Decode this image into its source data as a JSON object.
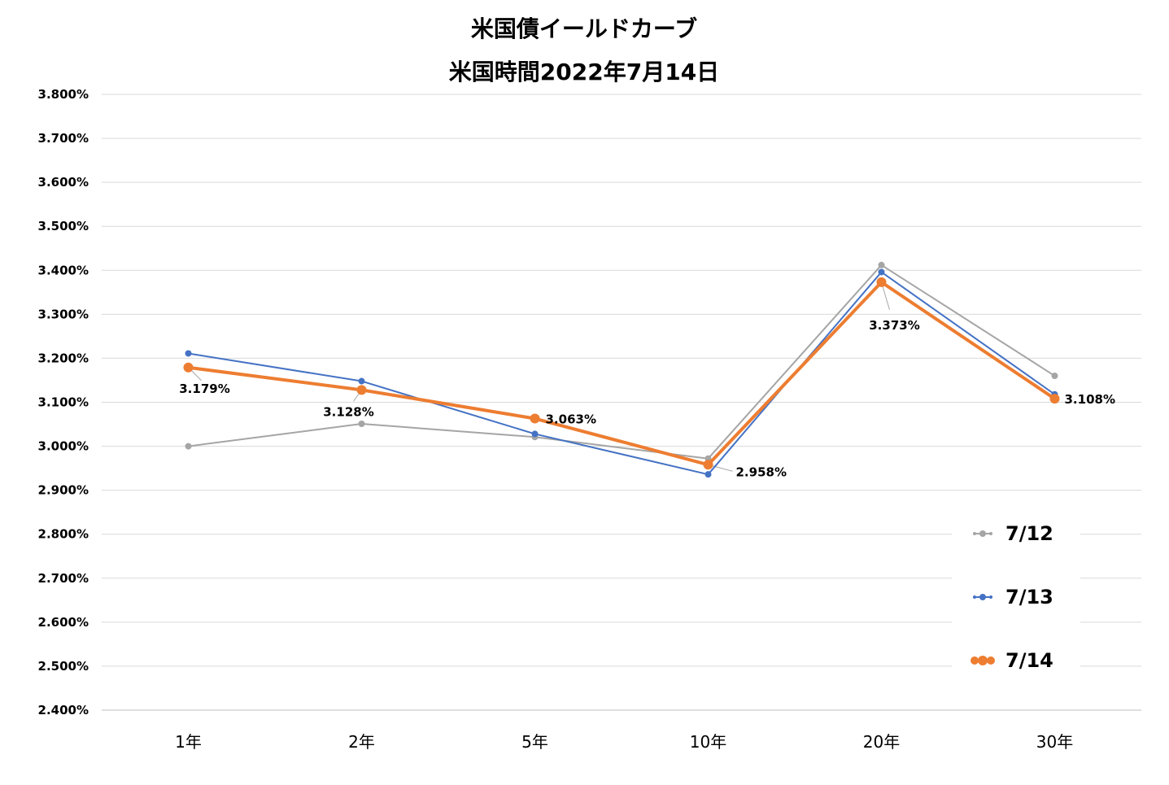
{
  "chart_data": {
    "type": "line",
    "title": "米国債イールドカーブ",
    "subtitle": "米国時間2022年7月14日",
    "categories": [
      "1年",
      "2年",
      "5年",
      "10年",
      "20年",
      "30年"
    ],
    "ylim": [
      2.4,
      3.8
    ],
    "ytick_step": 0.1,
    "ytick_labels": [
      "3.800%",
      "3.700%",
      "3.600%",
      "3.500%",
      "3.400%",
      "3.300%",
      "3.200%",
      "3.100%",
      "3.000%",
      "2.900%",
      "2.800%",
      "2.700%",
      "2.600%",
      "2.500%",
      "2.400%"
    ],
    "grid": true,
    "legend_position": "bottom-right",
    "series": [
      {
        "name": "7/12",
        "color": "#a5a5a5",
        "values": [
          3.0,
          3.051,
          3.021,
          2.972,
          3.412,
          3.16
        ]
      },
      {
        "name": "7/13",
        "color": "#4472c4",
        "values": [
          3.211,
          3.148,
          3.028,
          2.936,
          3.396,
          3.118
        ]
      },
      {
        "name": "7/14",
        "color": "#ed7d31",
        "values": [
          3.179,
          3.128,
          3.063,
          2.958,
          3.373,
          3.108
        ],
        "data_labels": [
          "3.179%",
          "3.128%",
          "3.063%",
          "2.958%",
          "3.373%",
          "3.108%"
        ]
      }
    ]
  }
}
